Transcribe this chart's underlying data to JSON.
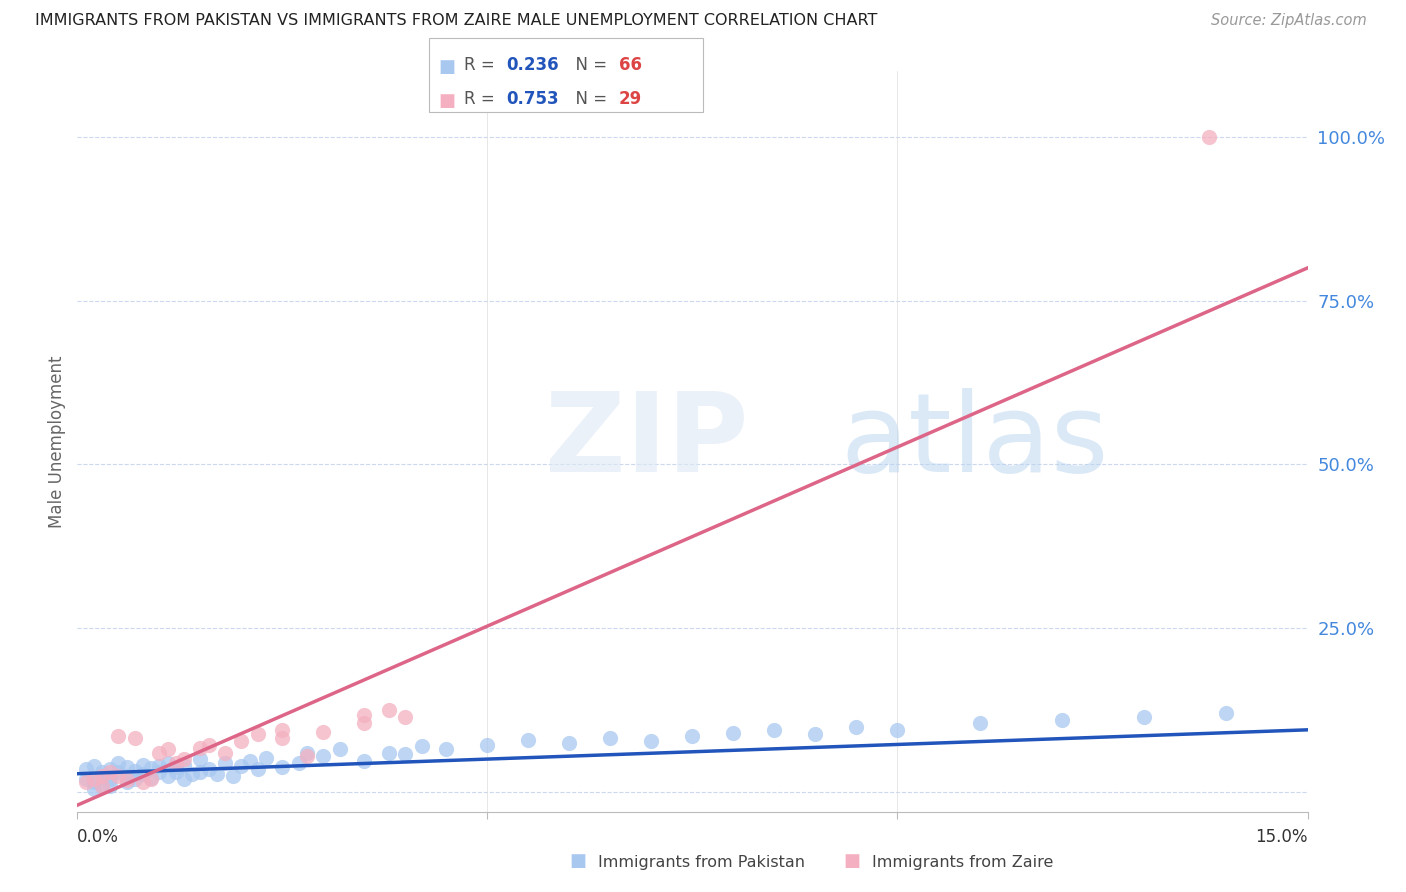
{
  "title": "IMMIGRANTS FROM PAKISTAN VS IMMIGRANTS FROM ZAIRE MALE UNEMPLOYMENT CORRELATION CHART",
  "source": "Source: ZipAtlas.com",
  "ylabel": "Male Unemployment",
  "xlim": [
    0.0,
    0.15
  ],
  "ylim": [
    -0.03,
    1.1
  ],
  "pakistan_R": 0.236,
  "pakistan_N": 66,
  "zaire_R": 0.753,
  "zaire_N": 29,
  "pakistan_color": "#a8c8f0",
  "zaire_color": "#f4b0c0",
  "pakistan_line_color": "#2255bb",
  "zaire_line_color": "#dd6688",
  "background_color": "#ffffff",
  "pakistan_x": [
    0.001,
    0.001,
    0.002,
    0.002,
    0.003,
    0.003,
    0.003,
    0.004,
    0.004,
    0.005,
    0.005,
    0.006,
    0.006,
    0.007,
    0.007,
    0.008,
    0.008,
    0.009,
    0.009,
    0.01,
    0.01,
    0.011,
    0.011,
    0.012,
    0.012,
    0.013,
    0.013,
    0.014,
    0.015,
    0.015,
    0.016,
    0.017,
    0.018,
    0.019,
    0.02,
    0.021,
    0.022,
    0.023,
    0.025,
    0.027,
    0.028,
    0.03,
    0.032,
    0.035,
    0.038,
    0.04,
    0.042,
    0.045,
    0.05,
    0.055,
    0.06,
    0.065,
    0.07,
    0.075,
    0.08,
    0.085,
    0.09,
    0.095,
    0.1,
    0.11,
    0.12,
    0.13,
    0.14,
    0.002,
    0.004,
    0.006
  ],
  "pakistan_y": [
    0.02,
    0.035,
    0.015,
    0.04,
    0.025,
    0.03,
    0.01,
    0.035,
    0.02,
    0.03,
    0.045,
    0.025,
    0.038,
    0.02,
    0.032,
    0.028,
    0.042,
    0.022,
    0.036,
    0.03,
    0.04,
    0.025,
    0.045,
    0.03,
    0.038,
    0.02,
    0.042,
    0.028,
    0.03,
    0.05,
    0.035,
    0.028,
    0.045,
    0.025,
    0.04,
    0.048,
    0.035,
    0.052,
    0.038,
    0.045,
    0.06,
    0.055,
    0.065,
    0.048,
    0.06,
    0.058,
    0.07,
    0.065,
    0.072,
    0.08,
    0.075,
    0.082,
    0.078,
    0.085,
    0.09,
    0.095,
    0.088,
    0.1,
    0.095,
    0.105,
    0.11,
    0.115,
    0.12,
    0.005,
    0.01,
    0.015
  ],
  "zaire_x": [
    0.001,
    0.002,
    0.003,
    0.003,
    0.004,
    0.005,
    0.005,
    0.006,
    0.007,
    0.008,
    0.009,
    0.01,
    0.011,
    0.012,
    0.013,
    0.015,
    0.016,
    0.018,
    0.02,
    0.022,
    0.025,
    0.028,
    0.025,
    0.03,
    0.035,
    0.035,
    0.038,
    0.04,
    0.138
  ],
  "zaire_y": [
    0.015,
    0.02,
    0.025,
    0.01,
    0.03,
    0.025,
    0.085,
    0.018,
    0.082,
    0.015,
    0.02,
    0.06,
    0.065,
    0.045,
    0.05,
    0.068,
    0.072,
    0.06,
    0.078,
    0.088,
    0.082,
    0.055,
    0.095,
    0.092,
    0.105,
    0.118,
    0.125,
    0.115,
    1.0
  ],
  "pk_line_x": [
    0.0,
    0.15
  ],
  "pk_line_y": [
    0.028,
    0.095
  ],
  "zr_line_x": [
    0.0,
    0.15
  ],
  "zr_line_y": [
    -0.02,
    0.8
  ]
}
